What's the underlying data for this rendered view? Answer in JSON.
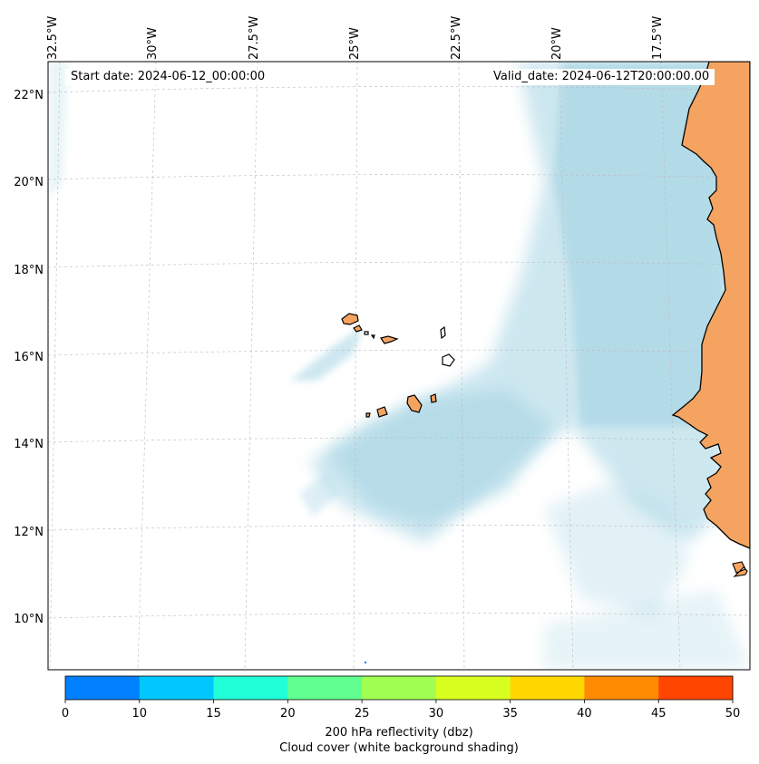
{
  "map": {
    "start_date": "Start date: 2024-06-12_00:00:00",
    "valid_date": "Valid_date: 2024-06-12T20:00:00.00",
    "land_color": "#f4a460",
    "cloud_color": "#add8e6",
    "longitude_labels": [
      "32.5°W",
      "30°W",
      "27.5°W",
      "25°W",
      "22.5°W",
      "20°W",
      "17.5°W"
    ],
    "latitude_labels": [
      "22°N",
      "20°N",
      "18°N",
      "16°N",
      "14°N",
      "12°N",
      "10°N"
    ]
  },
  "colorbar": {
    "ticks": [
      "0",
      "10",
      "15",
      "20",
      "25",
      "30",
      "35",
      "40",
      "45",
      "50"
    ],
    "colors": [
      "#0080ff",
      "#00c8ff",
      "#20ffd8",
      "#60ff90",
      "#a0ff50",
      "#d8ff20",
      "#ffd700",
      "#ff8c00",
      "#ff4500"
    ],
    "label": "200 hPa reflectivity (dbz)",
    "sublabel": "Cloud cover (white background shading)"
  }
}
